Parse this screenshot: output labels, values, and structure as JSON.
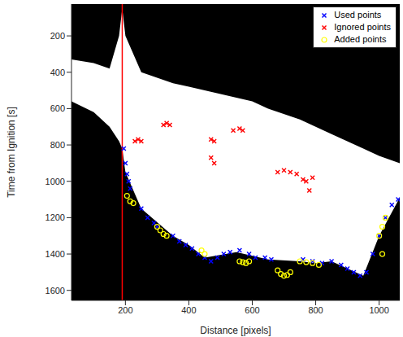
{
  "chart_data": {
    "type": "scatter",
    "xlabel": "Distance [pixels]",
    "ylabel": "Time from Ignition [s]",
    "xlim": [
      30,
      1065
    ],
    "xticks": [
      200,
      400,
      600,
      800,
      1000
    ],
    "ylim": [
      25,
      1655
    ],
    "yticks": [
      200,
      400,
      600,
      800,
      1000,
      1200,
      1400,
      1600
    ],
    "legend": "upper right",
    "grid": false,
    "region": {
      "color": "#ffffff",
      "x": [
        30,
        100,
        150,
        180,
        190,
        200,
        250,
        350,
        400,
        450,
        550,
        600,
        650,
        750,
        800,
        850,
        950,
        1000,
        1065
      ],
      "top": [
        330,
        350,
        380,
        200,
        50,
        200,
        400,
        460,
        480,
        500,
        540,
        560,
        600,
        660,
        700,
        740,
        820,
        860,
        900
      ],
      "bottom": [
        560,
        620,
        700,
        780,
        820,
        950,
        1150,
        1300,
        1350,
        1420,
        1390,
        1410,
        1430,
        1440,
        1450,
        1440,
        1520,
        1300,
        1090
      ]
    },
    "vertical_line": {
      "x": 190,
      "color": "#ff0000"
    },
    "series": [
      {
        "name": "Used points",
        "color": "#0000ff",
        "marker": "x",
        "x": [
          195,
          200,
          205,
          210,
          215,
          250,
          270,
          290,
          300,
          350,
          370,
          390,
          410,
          430,
          450,
          470,
          490,
          510,
          530,
          560,
          590,
          610,
          640,
          660,
          760,
          790,
          820,
          850,
          880,
          900,
          920,
          940,
          960,
          980,
          1000,
          1020,
          1040,
          1060
        ],
        "values": [
          820,
          900,
          960,
          1000,
          1040,
          1150,
          1200,
          1230,
          1250,
          1300,
          1330,
          1350,
          1370,
          1400,
          1420,
          1440,
          1420,
          1400,
          1390,
          1380,
          1400,
          1420,
          1420,
          1430,
          1430,
          1440,
          1450,
          1440,
          1460,
          1480,
          1500,
          1520,
          1500,
          1400,
          1300,
          1200,
          1130,
          1100
        ]
      },
      {
        "name": "Ignored points",
        "color": "#ff0000",
        "marker": "x",
        "x": [
          230,
          240,
          250,
          320,
          330,
          340,
          470,
          480,
          470,
          480,
          540,
          560,
          570,
          680,
          700,
          720,
          740,
          760,
          770,
          780,
          790
        ],
        "values": [
          780,
          770,
          780,
          690,
          680,
          690,
          770,
          780,
          870,
          900,
          720,
          710,
          720,
          950,
          940,
          950,
          960,
          990,
          1000,
          1050,
          980
        ]
      },
      {
        "name": "Added points",
        "color": "#ffff00",
        "marker": "o",
        "x": [
          205,
          215,
          225,
          300,
          310,
          320,
          330,
          440,
          450,
          560,
          570,
          580,
          590,
          680,
          690,
          700,
          710,
          720,
          750,
          770,
          790,
          810,
          1000,
          1010,
          1020,
          1010
        ],
        "values": [
          1080,
          1110,
          1120,
          1250,
          1270,
          1290,
          1300,
          1380,
          1400,
          1440,
          1445,
          1450,
          1440,
          1490,
          1510,
          1520,
          1515,
          1500,
          1440,
          1445,
          1450,
          1460,
          1300,
          1250,
          1200,
          1400
        ]
      }
    ]
  }
}
